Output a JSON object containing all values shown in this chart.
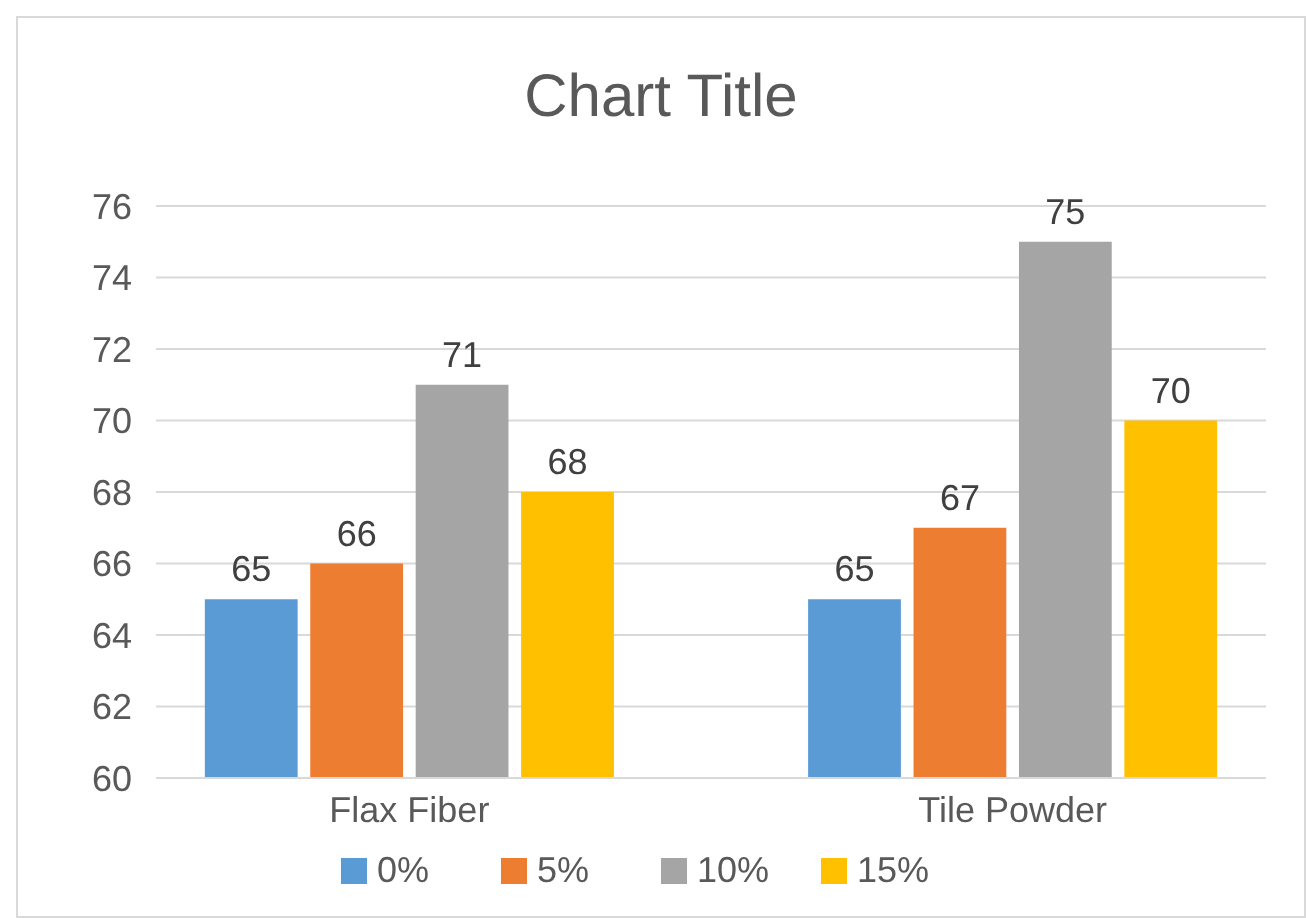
{
  "chart_data": {
    "type": "bar",
    "title": "Chart Title",
    "categories": [
      "Flax Fiber",
      "Tile Powder"
    ],
    "series": [
      {
        "name": "0%",
        "color": "#5b9bd5",
        "values": [
          65,
          65
        ]
      },
      {
        "name": "5%",
        "color": "#ed7d31",
        "values": [
          66,
          67
        ]
      },
      {
        "name": "10%",
        "color": "#a5a5a5",
        "values": [
          71,
          75
        ]
      },
      {
        "name": "15%",
        "color": "#ffc000",
        "values": [
          68,
          70
        ]
      }
    ],
    "ylim": [
      60,
      76
    ],
    "yticks": [
      60,
      62,
      64,
      66,
      68,
      70,
      72,
      74,
      76
    ],
    "grid": "y",
    "data_labels": true,
    "legend": "bottom"
  }
}
